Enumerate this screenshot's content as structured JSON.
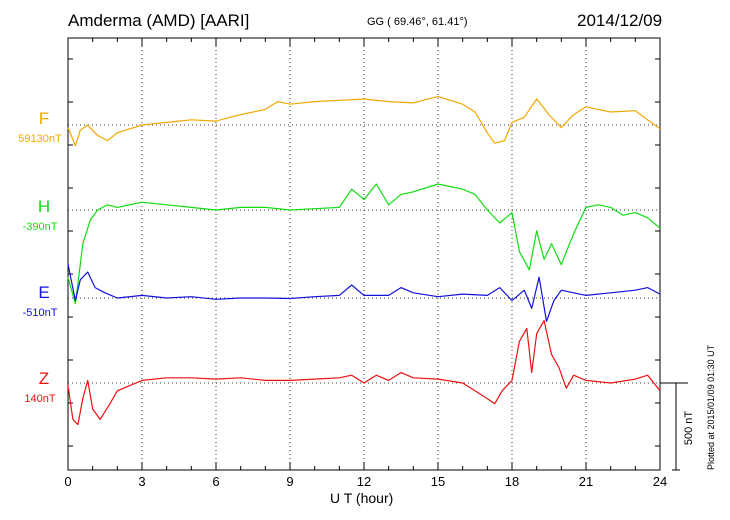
{
  "header": {
    "station": "Amderma (AMD)  [AARI]",
    "coords": "GG ( 69.46°,  61.41°)",
    "date": "2014/12/09"
  },
  "footer": {
    "plotted": "Plotted at 2015/01/09 01:30 UT"
  },
  "chart_data": {
    "type": "line",
    "xlabel": "U T (hour)",
    "xlim": [
      0,
      24
    ],
    "xticks": [
      0,
      3,
      6,
      9,
      12,
      15,
      18,
      21,
      24
    ],
    "grid": true,
    "scale_bar_label": "500 nT",
    "scale_bar_nT": 500,
    "series": [
      {
        "name": "F",
        "baseline_label": "59130nT",
        "baseline_nT": 59130,
        "color": "#f0a800",
        "x": [
          0,
          0.3,
          0.5,
          0.8,
          1.2,
          1.6,
          2,
          3,
          4,
          5,
          6,
          7,
          8,
          8.5,
          9,
          10,
          11,
          12,
          13,
          14,
          15,
          16,
          16.5,
          17,
          17.3,
          17.7,
          18,
          18.5,
          19,
          19.5,
          20,
          20.5,
          21,
          21.5,
          22,
          23,
          24
        ],
        "y": [
          59120,
          59050,
          59110,
          59130,
          59090,
          59070,
          59100,
          59130,
          59140,
          59150,
          59145,
          59170,
          59190,
          59220,
          59210,
          59220,
          59225,
          59230,
          59220,
          59215,
          59240,
          59210,
          59180,
          59100,
          59060,
          59070,
          59140,
          59160,
          59230,
          59170,
          59120,
          59170,
          59200,
          59190,
          59180,
          59185,
          59115
        ]
      },
      {
        "name": "H",
        "baseline_label": "-390nT",
        "baseline_nT": -390,
        "color": "#11dd11",
        "x": [
          0,
          0.3,
          0.6,
          0.9,
          1.2,
          1.6,
          2,
          3,
          4,
          5,
          6,
          7,
          8,
          9,
          10,
          11,
          11.5,
          12,
          12.5,
          13,
          13.5,
          14,
          15,
          16,
          16.5,
          17,
          17.5,
          18,
          18.3,
          18.7,
          19,
          19.3,
          19.6,
          20,
          20.5,
          21,
          21.5,
          22,
          22.5,
          23,
          23.5,
          24
        ],
        "y": [
          -650,
          -750,
          -520,
          -430,
          -390,
          -370,
          -380,
          -360,
          -370,
          -380,
          -390,
          -380,
          -380,
          -390,
          -385,
          -380,
          -310,
          -350,
          -290,
          -370,
          -330,
          -320,
          -290,
          -310,
          -330,
          -390,
          -440,
          -400,
          -550,
          -620,
          -470,
          -580,
          -520,
          -600,
          -480,
          -380,
          -370,
          -380,
          -410,
          -400,
          -420,
          -460
        ]
      },
      {
        "name": "E",
        "baseline_label": "-510nT",
        "baseline_nT": -510,
        "color": "#1111dd",
        "x": [
          0,
          0.3,
          0.5,
          0.8,
          1.1,
          1.5,
          2,
          3,
          4,
          5,
          6,
          7,
          8,
          9,
          10,
          11,
          11.5,
          12,
          13,
          13.5,
          14,
          15,
          16,
          17,
          17.5,
          18,
          18.5,
          18.8,
          19.1,
          19.4,
          19.7,
          20,
          21,
          22,
          23,
          23.5,
          24
        ],
        "y": [
          -380,
          -520,
          -440,
          -410,
          -470,
          -490,
          -510,
          -500,
          -510,
          -505,
          -515,
          -510,
          -510,
          -512,
          -505,
          -500,
          -460,
          -500,
          -500,
          -470,
          -490,
          -505,
          -495,
          -500,
          -470,
          -520,
          -480,
          -550,
          -430,
          -600,
          -520,
          -480,
          -500,
          -490,
          -480,
          -470,
          -495
        ]
      },
      {
        "name": "Z",
        "baseline_label": "140nT",
        "baseline_nT": 140,
        "color": "#ee1111",
        "x": [
          0,
          0.2,
          0.4,
          0.6,
          0.8,
          1,
          1.3,
          1.7,
          2,
          3,
          4,
          5,
          6,
          7,
          8,
          9,
          10,
          11,
          11.5,
          12,
          12.5,
          13,
          13.5,
          14,
          15,
          16,
          16.5,
          17,
          17.3,
          17.6,
          18,
          18.3,
          18.6,
          18.8,
          19,
          19.3,
          19.6,
          19.9,
          20.2,
          20.5,
          21,
          22,
          23,
          23.5,
          24
        ],
        "y": [
          130,
          0,
          -20,
          80,
          150,
          40,
          0,
          60,
          110,
          150,
          160,
          160,
          155,
          160,
          150,
          150,
          155,
          160,
          170,
          140,
          170,
          150,
          180,
          160,
          155,
          140,
          110,
          80,
          60,
          110,
          150,
          300,
          350,
          180,
          330,
          380,
          250,
          200,
          120,
          170,
          150,
          140,
          155,
          170,
          110
        ]
      }
    ]
  }
}
